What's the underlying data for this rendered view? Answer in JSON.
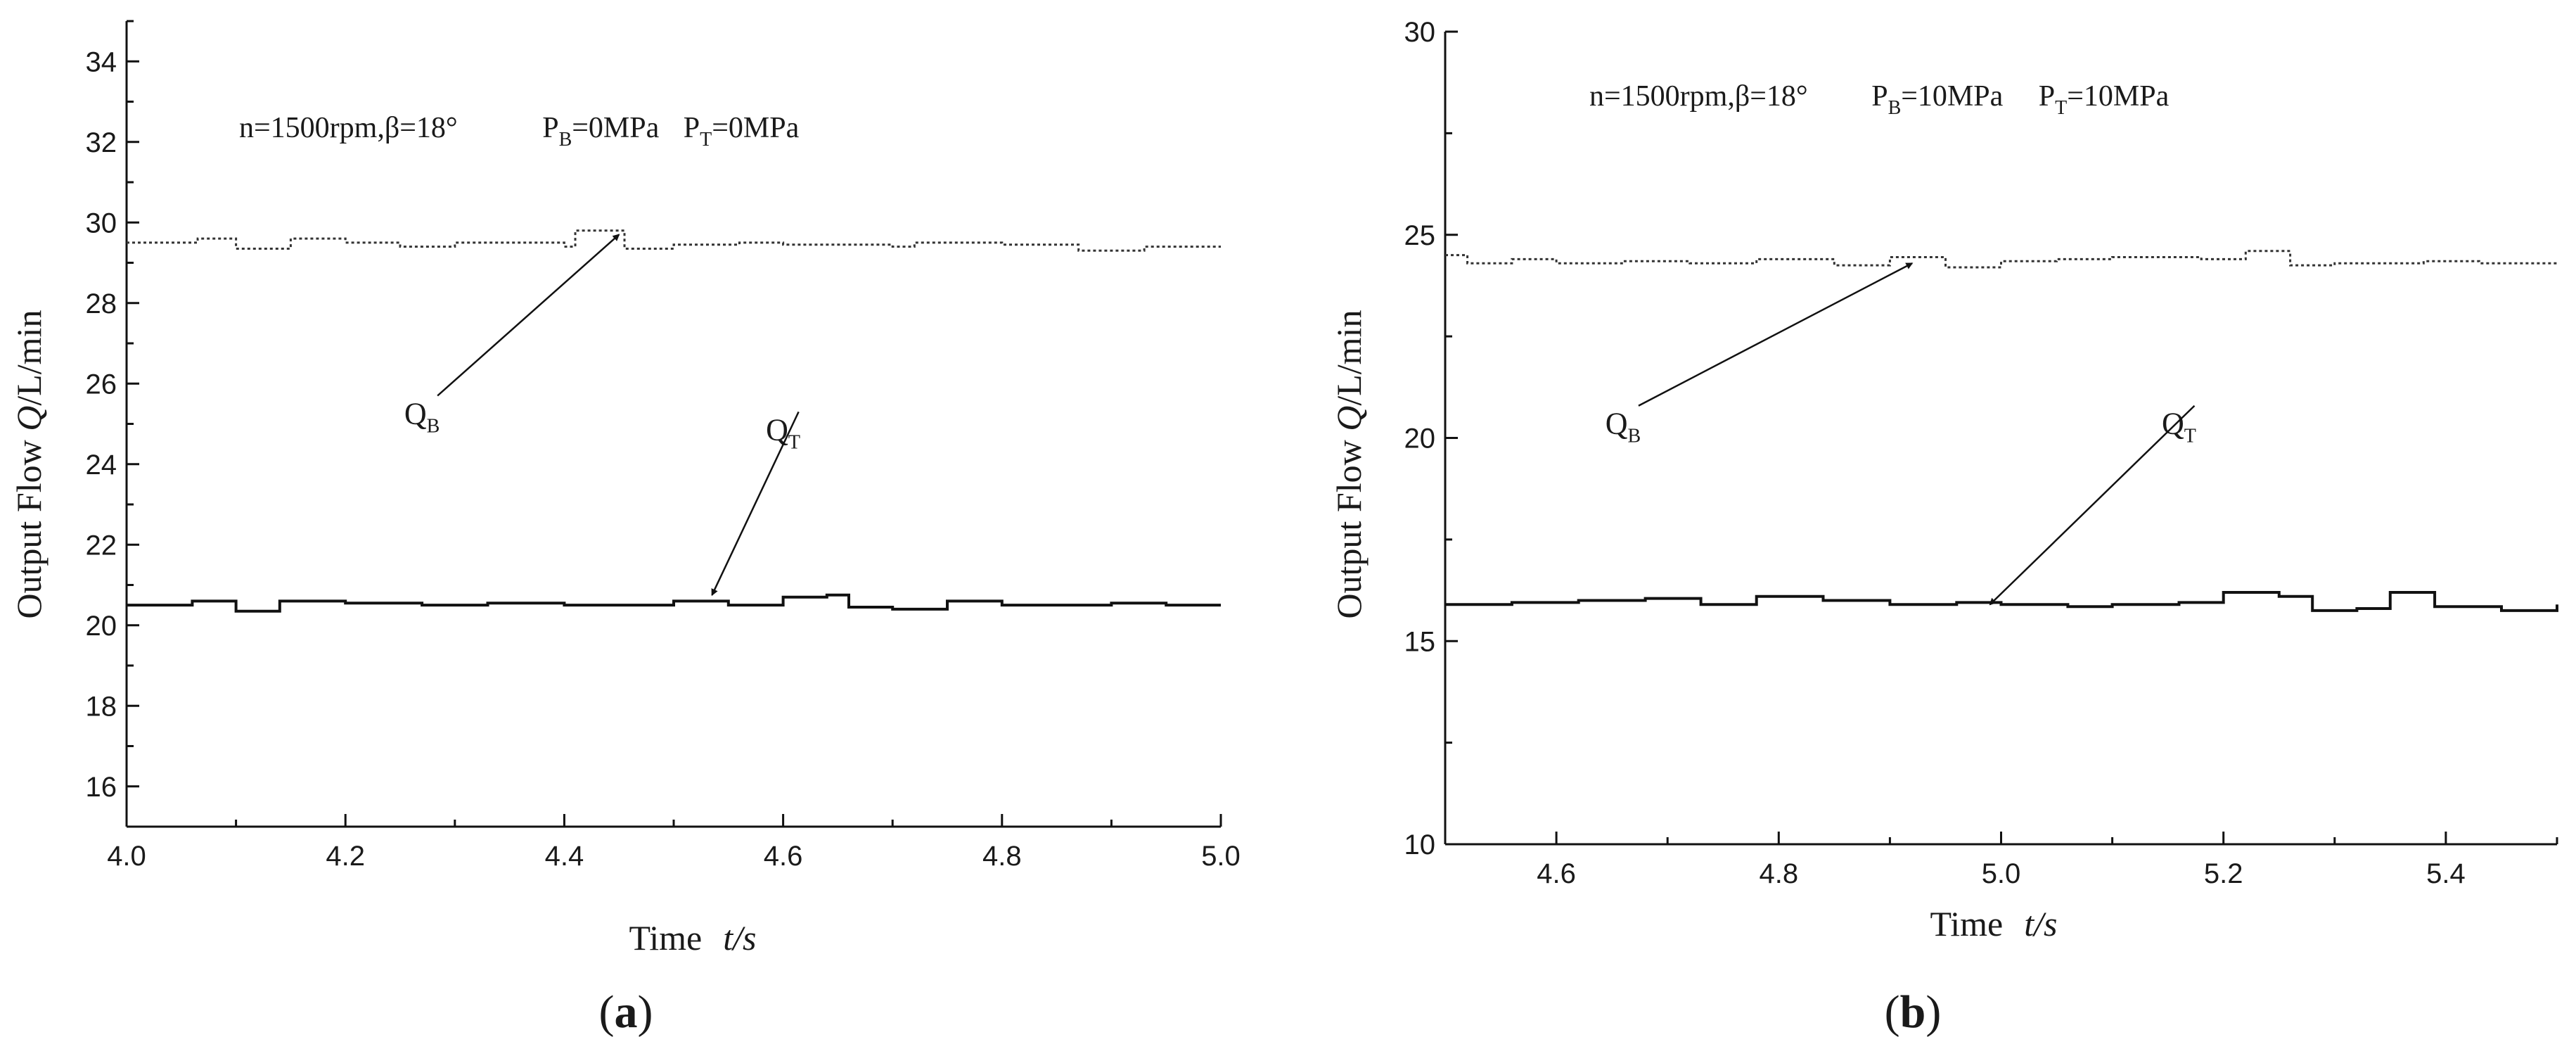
{
  "chart_data": [
    {
      "type": "line",
      "panel_label": "a",
      "condition": {
        "n_beta": "n=1500rpm,β=18°",
        "p_b_main": "P",
        "p_b_sub": "B",
        "p_b_value": "=0MPa",
        "p_t_main": "P",
        "p_t_sub": "T",
        "p_t_value": "=0MPa"
      },
      "xlabel_main": "Time",
      "xlabel_unit": "t/s",
      "ylabel_pre": "Output Flow ",
      "ylabel_q": "Q",
      "ylabel_post": "/L/min",
      "xlim": [
        4.0,
        5.0
      ],
      "ylim": [
        15.0,
        35.0
      ],
      "xticks": [
        4.0,
        4.2,
        4.4,
        4.6,
        4.8,
        5.0
      ],
      "xtick_labels": [
        "4.0",
        "4.2",
        "4.4",
        "4.6",
        "4.8",
        "5.0"
      ],
      "yticks": [
        16,
        18,
        20,
        22,
        24,
        26,
        28,
        30,
        32,
        34
      ],
      "ytick_labels": [
        "16",
        "18",
        "20",
        "22",
        "24",
        "26",
        "28",
        "30",
        "32",
        "34"
      ],
      "series": [
        {
          "name": "QB",
          "label_main": "Q",
          "label_sub": "B",
          "style": "dotted",
          "x": [
            4.0,
            4.065,
            4.1,
            4.15,
            4.2,
            4.25,
            4.3,
            4.4,
            4.41,
            4.455,
            4.5,
            4.56,
            4.6,
            4.7,
            4.72,
            4.8,
            4.87,
            4.93,
            5.0
          ],
          "y": [
            29.5,
            29.6,
            29.35,
            29.6,
            29.5,
            29.4,
            29.5,
            29.4,
            29.8,
            29.35,
            29.45,
            29.5,
            29.45,
            29.4,
            29.5,
            29.45,
            29.3,
            29.4,
            29.4
          ],
          "annotation_xy": [
            4.27,
            25.0
          ],
          "arrow_target": [
            4.45,
            29.7
          ]
        },
        {
          "name": "QT",
          "label_main": "Q",
          "label_sub": "T",
          "style": "solid",
          "x": [
            4.0,
            4.06,
            4.1,
            4.14,
            4.2,
            4.27,
            4.33,
            4.4,
            4.5,
            4.55,
            4.6,
            4.64,
            4.66,
            4.7,
            4.75,
            4.8,
            4.9,
            4.95,
            5.0
          ],
          "y": [
            20.5,
            20.6,
            20.35,
            20.6,
            20.55,
            20.5,
            20.55,
            20.5,
            20.6,
            20.5,
            20.7,
            20.75,
            20.45,
            20.4,
            20.6,
            20.5,
            20.55,
            20.5,
            20.5
          ],
          "annotation_xy": [
            4.6,
            24.6
          ],
          "arrow_target": [
            4.535,
            20.75
          ]
        }
      ]
    },
    {
      "type": "line",
      "panel_label": "b",
      "condition": {
        "n_beta": "n=1500rpm,β=18°",
        "p_b_main": "P",
        "p_b_sub": "B",
        "p_b_value": "=10MPa",
        "p_t_main": "P",
        "p_t_sub": "T",
        "p_t_value": "=10MPa"
      },
      "xlabel_main": "Time",
      "xlabel_unit": "t/s",
      "ylabel_pre": "Output Flow ",
      "ylabel_q": "Q",
      "ylabel_post": "/L/min",
      "xlim": [
        4.5,
        5.5
      ],
      "ylim": [
        10.0,
        30.0
      ],
      "xticks": [
        4.6,
        4.8,
        5.0,
        5.2,
        5.4
      ],
      "xtick_labels": [
        "4.6",
        "4.8",
        "5.0",
        "5.2",
        "5.4"
      ],
      "yticks": [
        10,
        15,
        20,
        25,
        30
      ],
      "ytick_labels": [
        "10",
        "15",
        "20",
        "25",
        "30"
      ],
      "series": [
        {
          "name": "QB",
          "label_main": "Q",
          "label_sub": "B",
          "style": "dotted",
          "x": [
            4.5,
            4.52,
            4.56,
            4.6,
            4.66,
            4.72,
            4.78,
            4.85,
            4.9,
            4.95,
            5.0,
            5.05,
            5.1,
            5.18,
            5.22,
            5.26,
            5.3,
            5.38,
            5.43,
            5.5
          ],
          "y": [
            24.5,
            24.3,
            24.4,
            24.3,
            24.35,
            24.3,
            24.4,
            24.25,
            24.45,
            24.2,
            24.35,
            24.4,
            24.45,
            24.4,
            24.6,
            24.25,
            24.3,
            24.35,
            24.3,
            24.25
          ],
          "annotation_xy": [
            4.66,
            20.1
          ],
          "arrow_target": [
            4.92,
            24.3
          ]
        },
        {
          "name": "QT",
          "label_main": "Q",
          "label_sub": "T",
          "style": "solid",
          "x": [
            4.5,
            4.56,
            4.62,
            4.68,
            4.73,
            4.78,
            4.84,
            4.9,
            4.96,
            5.0,
            5.06,
            5.1,
            5.16,
            5.2,
            5.25,
            5.28,
            5.32,
            5.35,
            5.39,
            5.45,
            5.5
          ],
          "y": [
            15.9,
            15.95,
            16.0,
            16.05,
            15.9,
            16.1,
            16.0,
            15.9,
            15.95,
            15.9,
            15.85,
            15.9,
            15.95,
            16.2,
            16.1,
            15.75,
            15.8,
            16.2,
            15.85,
            15.75,
            15.9
          ],
          "annotation_xy": [
            5.16,
            20.1
          ],
          "arrow_target": [
            4.99,
            15.9
          ]
        }
      ]
    }
  ],
  "captions": {
    "a_open": "(",
    "a_letter": "a",
    "a_close": ")",
    "b_open": "(",
    "b_letter": "b",
    "b_close": ")"
  }
}
